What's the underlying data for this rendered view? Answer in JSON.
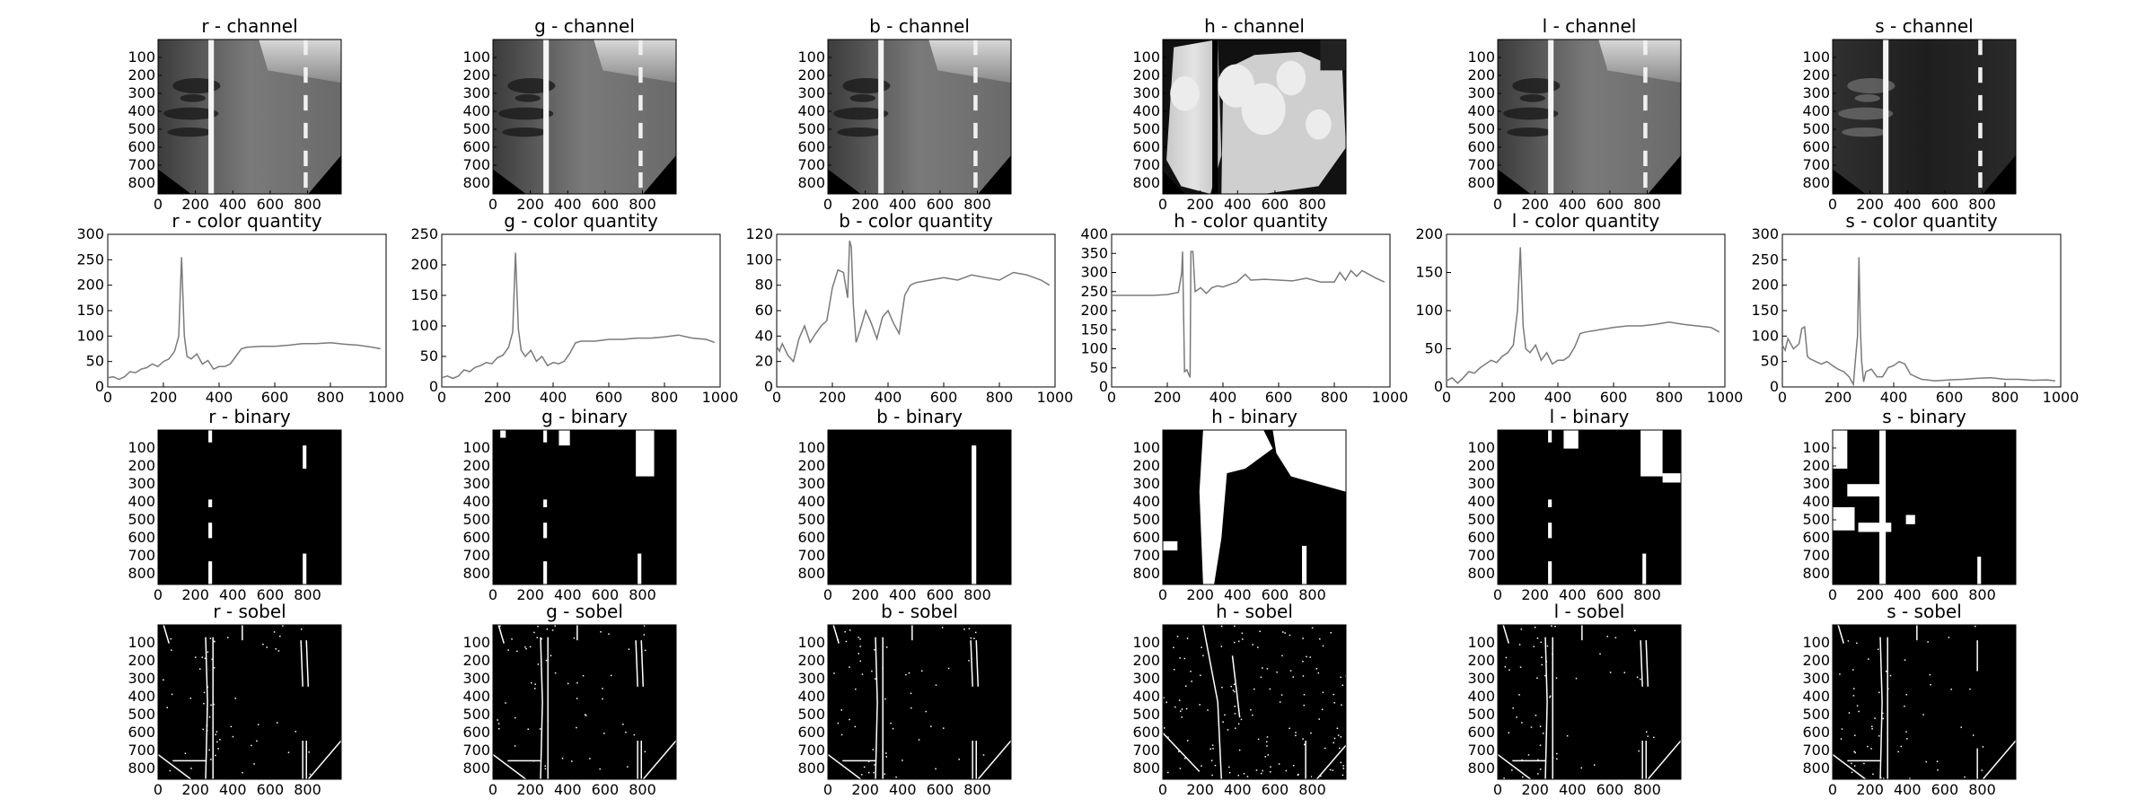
{
  "figure": {
    "columns": [
      "r",
      "g",
      "b",
      "h",
      "l",
      "s"
    ],
    "image_tick_labels_x": [
      "0",
      "200",
      "400",
      "600",
      "800"
    ],
    "image_tick_labels_y": [
      "100",
      "200",
      "300",
      "400",
      "500",
      "600",
      "700",
      "800"
    ]
  },
  "chart_data": [
    {
      "type": "heatmap",
      "title": "r - channel",
      "row": 0,
      "col": 0,
      "xlim": [
        0,
        980
      ],
      "ylim": [
        860,
        0
      ],
      "xticks": [
        0,
        200,
        400,
        600,
        800
      ],
      "yticks": [
        100,
        200,
        300,
        400,
        500,
        600,
        700,
        800
      ],
      "colormap": "gray",
      "content": "r-channel"
    },
    {
      "type": "heatmap",
      "title": "g - channel",
      "row": 0,
      "col": 1,
      "xlim": [
        0,
        980
      ],
      "ylim": [
        860,
        0
      ],
      "xticks": [
        0,
        200,
        400,
        600,
        800
      ],
      "yticks": [
        100,
        200,
        300,
        400,
        500,
        600,
        700,
        800
      ],
      "colormap": "gray",
      "content": "g-channel"
    },
    {
      "type": "heatmap",
      "title": "b - channel",
      "row": 0,
      "col": 2,
      "xlim": [
        0,
        980
      ],
      "ylim": [
        860,
        0
      ],
      "xticks": [
        0,
        200,
        400,
        600,
        800
      ],
      "yticks": [
        100,
        200,
        300,
        400,
        500,
        600,
        700,
        800
      ],
      "colormap": "gray",
      "content": "b-channel"
    },
    {
      "type": "heatmap",
      "title": "h - channel",
      "row": 0,
      "col": 3,
      "xlim": [
        0,
        980
      ],
      "ylim": [
        860,
        0
      ],
      "xticks": [
        0,
        200,
        400,
        600,
        800
      ],
      "yticks": [
        100,
        200,
        300,
        400,
        500,
        600,
        700,
        800
      ],
      "colormap": "gray",
      "content": "h-channel"
    },
    {
      "type": "heatmap",
      "title": "l - channel",
      "row": 0,
      "col": 4,
      "xlim": [
        0,
        980
      ],
      "ylim": [
        860,
        0
      ],
      "xticks": [
        0,
        200,
        400,
        600,
        800
      ],
      "yticks": [
        100,
        200,
        300,
        400,
        500,
        600,
        700,
        800
      ],
      "colormap": "gray",
      "content": "l-channel"
    },
    {
      "type": "heatmap",
      "title": "s - channel",
      "row": 0,
      "col": 5,
      "xlim": [
        0,
        980
      ],
      "ylim": [
        860,
        0
      ],
      "xticks": [
        0,
        200,
        400,
        600,
        800
      ],
      "yticks": [
        100,
        200,
        300,
        400,
        500,
        600,
        700,
        800
      ],
      "colormap": "gray",
      "content": "s-channel"
    },
    {
      "type": "line",
      "title": "r - color quantity",
      "row": 1,
      "col": 0,
      "xlim": [
        0,
        1000
      ],
      "ylim": [
        0,
        300
      ],
      "xticks": [
        0,
        200,
        400,
        600,
        800,
        1000
      ],
      "yticks": [
        0,
        50,
        100,
        150,
        200,
        250,
        300
      ],
      "series": [
        {
          "x": [
            0,
            20,
            40,
            60,
            80,
            100,
            120,
            140,
            160,
            180,
            200,
            220,
            240,
            255,
            265,
            275,
            285,
            300,
            320,
            340,
            360,
            380,
            400,
            420,
            440,
            460,
            480,
            500,
            550,
            600,
            650,
            700,
            750,
            800,
            850,
            900,
            950,
            980
          ],
          "y": [
            18,
            20,
            15,
            20,
            30,
            28,
            35,
            38,
            45,
            40,
            50,
            55,
            70,
            100,
            255,
            100,
            60,
            55,
            65,
            45,
            52,
            35,
            40,
            40,
            45,
            60,
            75,
            78,
            80,
            80,
            82,
            85,
            85,
            87,
            84,
            82,
            78,
            75
          ]
        }
      ]
    },
    {
      "type": "line",
      "title": "g - color quantity",
      "row": 1,
      "col": 1,
      "xlim": [
        0,
        1000
      ],
      "ylim": [
        0,
        250
      ],
      "xticks": [
        0,
        200,
        400,
        600,
        800,
        1000
      ],
      "yticks": [
        0,
        50,
        100,
        150,
        200,
        250
      ],
      "series": [
        {
          "x": [
            0,
            20,
            40,
            60,
            80,
            100,
            120,
            140,
            160,
            180,
            200,
            220,
            240,
            255,
            265,
            275,
            285,
            300,
            320,
            340,
            360,
            380,
            400,
            420,
            440,
            460,
            480,
            500,
            550,
            600,
            650,
            700,
            750,
            800,
            850,
            900,
            950,
            980
          ],
          "y": [
            15,
            18,
            14,
            18,
            28,
            25,
            32,
            35,
            40,
            38,
            48,
            52,
            65,
            90,
            220,
            95,
            60,
            50,
            60,
            42,
            50,
            35,
            40,
            38,
            42,
            55,
            72,
            75,
            75,
            78,
            78,
            80,
            80,
            82,
            85,
            80,
            78,
            73
          ]
        }
      ]
    },
    {
      "type": "line",
      "title": "b - color quantity",
      "row": 1,
      "col": 2,
      "xlim": [
        0,
        1000
      ],
      "ylim": [
        0,
        120
      ],
      "xticks": [
        0,
        200,
        400,
        600,
        800,
        1000
      ],
      "yticks": [
        0,
        20,
        40,
        60,
        80,
        100,
        120
      ],
      "series": [
        {
          "x": [
            0,
            10,
            20,
            40,
            60,
            80,
            100,
            120,
            140,
            160,
            180,
            200,
            220,
            240,
            255,
            262,
            268,
            275,
            285,
            300,
            320,
            340,
            360,
            380,
            400,
            420,
            440,
            460,
            480,
            500,
            550,
            600,
            650,
            700,
            750,
            800,
            850,
            900,
            950,
            980
          ],
          "y": [
            32,
            28,
            34,
            25,
            20,
            38,
            48,
            35,
            42,
            48,
            52,
            78,
            92,
            90,
            70,
            115,
            110,
            65,
            35,
            45,
            60,
            50,
            38,
            55,
            60,
            50,
            42,
            72,
            80,
            82,
            84,
            86,
            84,
            88,
            86,
            84,
            90,
            88,
            84,
            80
          ]
        }
      ]
    },
    {
      "type": "line",
      "title": "h - color quantity",
      "row": 1,
      "col": 3,
      "xlim": [
        0,
        1000
      ],
      "ylim": [
        0,
        400
      ],
      "xticks": [
        0,
        200,
        400,
        600,
        800,
        1000
      ],
      "yticks": [
        0,
        50,
        100,
        150,
        200,
        250,
        300,
        350,
        400
      ],
      "series": [
        {
          "x": [
            0,
            50,
            100,
            150,
            200,
            240,
            252,
            255,
            262,
            270,
            282,
            285,
            292,
            300,
            320,
            340,
            360,
            380,
            400,
            450,
            480,
            500,
            550,
            600,
            650,
            700,
            750,
            800,
            820,
            840,
            860,
            880,
            900,
            950,
            980
          ],
          "y": [
            240,
            240,
            240,
            240,
            242,
            248,
            300,
            355,
            40,
            45,
            25,
            355,
            355,
            250,
            260,
            245,
            260,
            265,
            262,
            275,
            295,
            280,
            282,
            280,
            278,
            285,
            275,
            275,
            300,
            280,
            305,
            290,
            305,
            285,
            275
          ]
        }
      ]
    },
    {
      "type": "line",
      "title": "l - color quantity",
      "row": 1,
      "col": 4,
      "xlim": [
        0,
        1000
      ],
      "ylim": [
        0,
        200
      ],
      "xticks": [
        0,
        200,
        400,
        600,
        800,
        1000
      ],
      "yticks": [
        0,
        50,
        100,
        150,
        200
      ],
      "series": [
        {
          "x": [
            0,
            20,
            40,
            60,
            80,
            100,
            120,
            140,
            160,
            180,
            200,
            220,
            240,
            255,
            265,
            275,
            285,
            300,
            320,
            340,
            360,
            380,
            400,
            420,
            440,
            460,
            480,
            500,
            550,
            600,
            650,
            700,
            750,
            800,
            850,
            900,
            950,
            980
          ],
          "y": [
            8,
            12,
            5,
            12,
            20,
            18,
            25,
            30,
            35,
            32,
            40,
            45,
            55,
            100,
            183,
            80,
            50,
            45,
            55,
            35,
            45,
            30,
            35,
            35,
            40,
            52,
            70,
            72,
            75,
            78,
            80,
            80,
            82,
            85,
            82,
            80,
            78,
            72
          ]
        }
      ]
    },
    {
      "type": "line",
      "title": "s - color quantity",
      "row": 1,
      "col": 5,
      "xlim": [
        0,
        1000
      ],
      "ylim": [
        0,
        300
      ],
      "xticks": [
        0,
        200,
        400,
        600,
        800,
        1000
      ],
      "yticks": [
        0,
        50,
        100,
        150,
        200,
        250,
        300
      ],
      "series": [
        {
          "x": [
            0,
            10,
            20,
            40,
            50,
            60,
            70,
            80,
            90,
            100,
            120,
            140,
            160,
            180,
            200,
            220,
            240,
            255,
            262,
            270,
            275,
            280,
            285,
            292,
            300,
            320,
            340,
            360,
            380,
            400,
            420,
            440,
            460,
            480,
            500,
            550,
            600,
            650,
            700,
            750,
            800,
            850,
            900,
            950,
            980
          ],
          "y": [
            82,
            72,
            95,
            75,
            80,
            85,
            115,
            118,
            60,
            55,
            50,
            45,
            50,
            42,
            35,
            30,
            20,
            5,
            50,
            100,
            255,
            120,
            50,
            10,
            30,
            35,
            20,
            20,
            38,
            42,
            50,
            45,
            25,
            20,
            15,
            12,
            14,
            15,
            17,
            18,
            15,
            15,
            13,
            14,
            12
          ]
        }
      ]
    },
    {
      "type": "heatmap",
      "title": "r - binary",
      "row": 2,
      "col": 0,
      "xlim": [
        0,
        980
      ],
      "ylim": [
        860,
        0
      ],
      "xticks": [
        0,
        200,
        400,
        600,
        800
      ],
      "yticks": [
        100,
        200,
        300,
        400,
        500,
        600,
        700,
        800
      ],
      "colormap": "binary",
      "content": "r-binary"
    },
    {
      "type": "heatmap",
      "title": "g - binary",
      "row": 2,
      "col": 1,
      "xlim": [
        0,
        980
      ],
      "ylim": [
        860,
        0
      ],
      "xticks": [
        0,
        200,
        400,
        600,
        800
      ],
      "yticks": [
        100,
        200,
        300,
        400,
        500,
        600,
        700,
        800
      ],
      "colormap": "binary",
      "content": "g-binary"
    },
    {
      "type": "heatmap",
      "title": "b - binary",
      "row": 2,
      "col": 2,
      "xlim": [
        0,
        980
      ],
      "ylim": [
        860,
        0
      ],
      "xticks": [
        0,
        200,
        400,
        600,
        800
      ],
      "yticks": [
        100,
        200,
        300,
        400,
        500,
        600,
        700,
        800
      ],
      "colormap": "binary",
      "content": "b-binary"
    },
    {
      "type": "heatmap",
      "title": "h - binary",
      "row": 2,
      "col": 3,
      "xlim": [
        0,
        980
      ],
      "ylim": [
        860,
        0
      ],
      "xticks": [
        0,
        200,
        400,
        600,
        800
      ],
      "yticks": [
        100,
        200,
        300,
        400,
        500,
        600,
        700,
        800
      ],
      "colormap": "binary",
      "content": "h-binary"
    },
    {
      "type": "heatmap",
      "title": "l - binary",
      "row": 2,
      "col": 4,
      "xlim": [
        0,
        980
      ],
      "ylim": [
        860,
        0
      ],
      "xticks": [
        0,
        200,
        400,
        600,
        800
      ],
      "yticks": [
        100,
        200,
        300,
        400,
        500,
        600,
        700,
        800
      ],
      "colormap": "binary",
      "content": "l-binary"
    },
    {
      "type": "heatmap",
      "title": "s - binary",
      "row": 2,
      "col": 5,
      "xlim": [
        0,
        980
      ],
      "ylim": [
        860,
        0
      ],
      "xticks": [
        0,
        200,
        400,
        600,
        800
      ],
      "yticks": [
        100,
        200,
        300,
        400,
        500,
        600,
        700,
        800
      ],
      "colormap": "binary",
      "content": "s-binary"
    },
    {
      "type": "heatmap",
      "title": "r - sobel",
      "row": 3,
      "col": 0,
      "xlim": [
        0,
        980
      ],
      "ylim": [
        860,
        0
      ],
      "xticks": [
        0,
        200,
        400,
        600,
        800
      ],
      "yticks": [
        100,
        200,
        300,
        400,
        500,
        600,
        700,
        800
      ],
      "colormap": "binary",
      "content": "r-sobel"
    },
    {
      "type": "heatmap",
      "title": "g - sobel",
      "row": 3,
      "col": 1,
      "xlim": [
        0,
        980
      ],
      "ylim": [
        860,
        0
      ],
      "xticks": [
        0,
        200,
        400,
        600,
        800
      ],
      "yticks": [
        100,
        200,
        300,
        400,
        500,
        600,
        700,
        800
      ],
      "colormap": "binary",
      "content": "g-sobel"
    },
    {
      "type": "heatmap",
      "title": "b - sobel",
      "row": 3,
      "col": 2,
      "xlim": [
        0,
        980
      ],
      "ylim": [
        860,
        0
      ],
      "xticks": [
        0,
        200,
        400,
        600,
        800
      ],
      "yticks": [
        100,
        200,
        300,
        400,
        500,
        600,
        700,
        800
      ],
      "colormap": "binary",
      "content": "b-sobel"
    },
    {
      "type": "heatmap",
      "title": "h - sobel",
      "row": 3,
      "col": 3,
      "xlim": [
        0,
        980
      ],
      "ylim": [
        860,
        0
      ],
      "xticks": [
        0,
        200,
        400,
        600,
        800
      ],
      "yticks": [
        100,
        200,
        300,
        400,
        500,
        600,
        700,
        800
      ],
      "colormap": "binary",
      "content": "h-sobel"
    },
    {
      "type": "heatmap",
      "title": "l - sobel",
      "row": 3,
      "col": 4,
      "xlim": [
        0,
        980
      ],
      "ylim": [
        860,
        0
      ],
      "xticks": [
        0,
        200,
        400,
        600,
        800
      ],
      "yticks": [
        100,
        200,
        300,
        400,
        500,
        600,
        700,
        800
      ],
      "colormap": "binary",
      "content": "l-sobel"
    },
    {
      "type": "heatmap",
      "title": "s - sobel",
      "row": 3,
      "col": 5,
      "xlim": [
        0,
        980
      ],
      "ylim": [
        860,
        0
      ],
      "xticks": [
        0,
        200,
        400,
        600,
        800
      ],
      "yticks": [
        100,
        200,
        300,
        400,
        500,
        600,
        700,
        800
      ],
      "colormap": "binary",
      "content": "s-sobel"
    }
  ]
}
